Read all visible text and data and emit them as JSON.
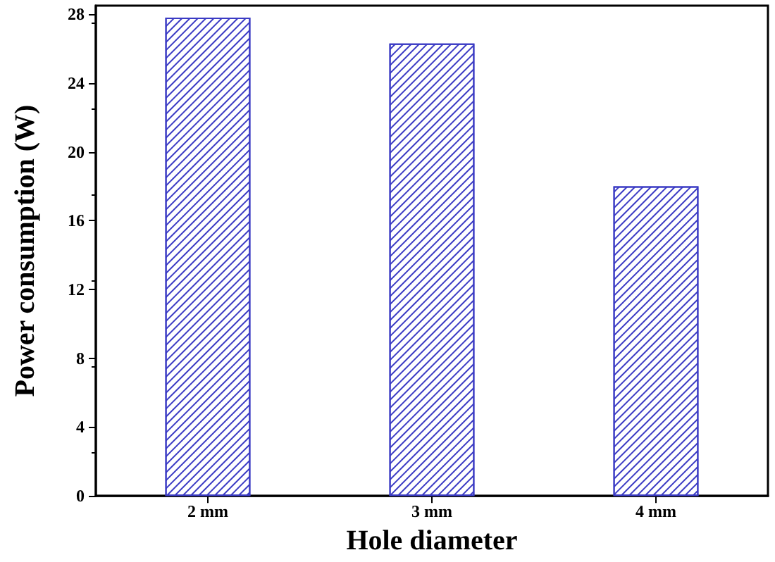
{
  "chart_data": {
    "type": "bar",
    "xlabel": "Hole diameter",
    "ylabel": "Power consumption (W)",
    "categories": [
      "2 mm",
      "3 mm",
      "4 mm"
    ],
    "values": [
      27.8,
      26.3,
      18.0
    ],
    "color": "#3b3bc4",
    "ylim": [
      0,
      28.5
    ],
    "yticks": [
      0,
      4,
      8,
      12,
      16,
      20,
      24,
      28
    ],
    "grid": false
  }
}
